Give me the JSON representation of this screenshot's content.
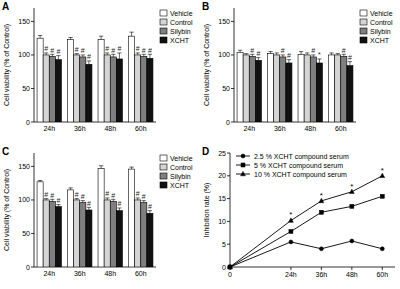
{
  "chart_data": [
    {
      "type": "bar",
      "panel": "A",
      "y_label": "Cell viability (% of Control)",
      "categories": [
        "24h",
        "36h",
        "48h",
        "60h"
      ],
      "ylim": [
        0,
        170
      ],
      "yticks": [
        0,
        50,
        100,
        150
      ],
      "legend": "right",
      "series": [
        {
          "name": "Vehicle",
          "color": "#ffffff",
          "values": [
            125,
            123,
            123,
            128
          ],
          "errors": [
            4,
            3,
            5,
            6
          ]
        },
        {
          "name": "Control",
          "color": "#d4d4d4",
          "values": [
            100,
            100,
            100,
            100
          ],
          "errors": [
            3,
            2,
            3,
            3
          ]
        },
        {
          "name": "Silybin",
          "color": "#7f7f7f",
          "values": [
            98,
            97,
            97,
            98
          ],
          "errors": [
            3,
            3,
            4,
            3
          ]
        },
        {
          "name": "XCHT",
          "color": "#111111",
          "values": [
            93,
            86,
            94,
            95
          ],
          "errors": [
            6,
            5,
            9,
            6
          ]
        }
      ],
      "annotations": [
        {
          "text": "#",
          "category": "24h",
          "series": "Control"
        },
        {
          "text": "#",
          "category": "24h",
          "series": "Silybin"
        },
        {
          "text": "#",
          "category": "24h",
          "series": "XCHT"
        },
        {
          "text": "#",
          "category": "36h",
          "series": "Control"
        },
        {
          "text": "#",
          "category": "36h",
          "series": "Silybin"
        },
        {
          "text": "#",
          "category": "36h",
          "series": "XCHT"
        },
        {
          "text": "#",
          "category": "48h",
          "series": "Control"
        },
        {
          "text": "#",
          "category": "48h",
          "series": "Silybin"
        },
        {
          "text": "#",
          "category": "48h",
          "series": "XCHT"
        },
        {
          "text": "#",
          "category": "60h",
          "series": "Control"
        },
        {
          "text": "#",
          "category": "60h",
          "series": "Silybin"
        },
        {
          "text": "#",
          "category": "60h",
          "series": "XCHT"
        }
      ]
    },
    {
      "type": "bar",
      "panel": "B",
      "y_label": "Cell viability (% of Control)",
      "categories": [
        "24h",
        "36h",
        "48h",
        "60h"
      ],
      "ylim": [
        0,
        170
      ],
      "yticks": [
        0,
        50,
        100,
        150
      ],
      "legend": "right",
      "series": [
        {
          "name": "Vehicle",
          "color": "#ffffff",
          "values": [
            104,
            102,
            101,
            100
          ],
          "errors": [
            3,
            3,
            4,
            3
          ]
        },
        {
          "name": "Control",
          "color": "#d4d4d4",
          "values": [
            100,
            100,
            100,
            100
          ],
          "errors": [
            2,
            3,
            3,
            2
          ]
        },
        {
          "name": "Silybin",
          "color": "#7f7f7f",
          "values": [
            98,
            97,
            97,
            98
          ],
          "errors": [
            3,
            3,
            3,
            3
          ]
        },
        {
          "name": "XCHT",
          "color": "#111111",
          "values": [
            92,
            88,
            88,
            84
          ],
          "errors": [
            4,
            5,
            6,
            6
          ]
        }
      ],
      "annotations": [
        {
          "text": "#",
          "category": "24h",
          "series": "Silybin"
        },
        {
          "text": "#",
          "category": "24h",
          "series": "XCHT"
        },
        {
          "text": "#",
          "category": "36h",
          "series": "Silybin"
        },
        {
          "text": "#",
          "category": "36h",
          "series": "XCHT"
        },
        {
          "text": "#",
          "category": "48h",
          "series": "Silybin"
        },
        {
          "text": "*",
          "category": "48h",
          "series": "XCHT"
        },
        {
          "text": "#",
          "category": "60h",
          "series": "Silybin"
        },
        {
          "text": "#",
          "category": "60h",
          "series": "XCHT"
        }
      ]
    },
    {
      "type": "bar",
      "panel": "C",
      "y_label": "Cell viability (% of Control)",
      "categories": [
        "24h",
        "36h",
        "48h",
        "60h"
      ],
      "ylim": [
        0,
        170
      ],
      "yticks": [
        0,
        50,
        100,
        150
      ],
      "legend": "right",
      "series": [
        {
          "name": "Vehicle",
          "color": "#ffffff",
          "values": [
            127,
            115,
            147,
            146
          ],
          "errors": [
            2,
            3,
            4,
            3
          ]
        },
        {
          "name": "Control",
          "color": "#d4d4d4",
          "values": [
            100,
            100,
            100,
            100
          ],
          "errors": [
            2,
            2,
            3,
            3
          ]
        },
        {
          "name": "Silybin",
          "color": "#7f7f7f",
          "values": [
            98,
            96,
            98,
            96
          ],
          "errors": [
            3,
            3,
            3,
            3
          ]
        },
        {
          "name": "XCHT",
          "color": "#111111",
          "values": [
            90,
            85,
            84,
            80
          ],
          "errors": [
            3,
            4,
            4,
            4
          ]
        }
      ],
      "annotations": [
        {
          "text": "#",
          "category": "24h",
          "series": "Control"
        },
        {
          "text": "#",
          "category": "24h",
          "series": "Silybin"
        },
        {
          "text": "#",
          "category": "24h",
          "series": "XCHT"
        },
        {
          "text": "#",
          "category": "36h",
          "series": "Control"
        },
        {
          "text": "#",
          "category": "36h",
          "series": "Silybin"
        },
        {
          "text": "#",
          "category": "36h",
          "series": "XCHT"
        },
        {
          "text": "#",
          "category": "48h",
          "series": "Control"
        },
        {
          "text": "#",
          "category": "48h",
          "series": "Silybin"
        },
        {
          "text": "#",
          "category": "48h",
          "series": "XCHT"
        },
        {
          "text": "#",
          "category": "60h",
          "series": "Control"
        },
        {
          "text": "#",
          "category": "60h",
          "series": "Silybin"
        },
        {
          "text": "#",
          "category": "60h",
          "series": "XCHT"
        }
      ]
    },
    {
      "type": "line",
      "panel": "D",
      "y_label": "Inhibition rate (%)",
      "x": [
        0,
        24,
        36,
        48,
        60
      ],
      "xlim": [
        0,
        65
      ],
      "xticks": [
        0,
        {
          "value": 24,
          "label": "24h"
        },
        {
          "value": 36,
          "label": "36h"
        },
        {
          "value": 48,
          "label": "48h"
        },
        {
          "value": 60,
          "label": "60h"
        }
      ],
      "ylim": [
        0,
        25
      ],
      "yticks": [
        0,
        5,
        10,
        15,
        20,
        25
      ],
      "legend": "upper left",
      "series": [
        {
          "name": "2.5 % XCHT compound serum",
          "color": "#000000",
          "marker": "circle",
          "line_style": "solid",
          "values": [
            0,
            5.5,
            4,
            5.7,
            4
          ]
        },
        {
          "name": "5 % XCHT compound serum",
          "color": "#000000",
          "marker": "square",
          "line_style": "solid",
          "values": [
            0,
            7.8,
            12,
            13.3,
            15.5
          ]
        },
        {
          "name": "10 % XCHT compound serum",
          "color": "#000000",
          "marker": "triangle",
          "line_style": "solid",
          "values": [
            0,
            10.2,
            14.5,
            16.5,
            20
          ]
        }
      ],
      "annotations": [
        {
          "text": "*",
          "x": 24,
          "series": "10 % XCHT compound serum"
        },
        {
          "text": "*",
          "x": 36,
          "series": "10 % XCHT compound serum"
        },
        {
          "text": "*",
          "x": 48,
          "series": "10 % XCHT compound serum"
        },
        {
          "text": "*",
          "x": 60,
          "series": "10 % XCHT compound serum"
        }
      ]
    }
  ]
}
